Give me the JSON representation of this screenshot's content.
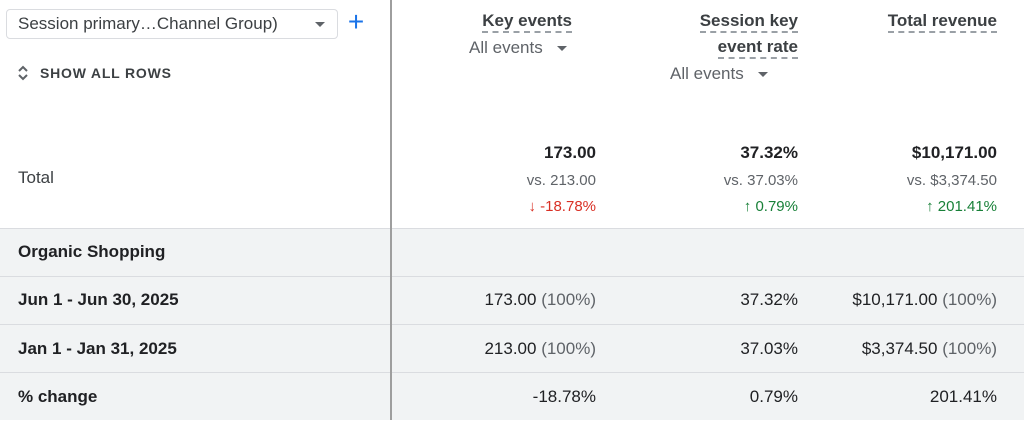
{
  "dimension": {
    "label": "Session primary…Channel Group)",
    "add_label": "+"
  },
  "show_all_rows": {
    "label": "SHOW ALL ROWS"
  },
  "columns": [
    {
      "title_line1": "Key events",
      "title_line2": "",
      "selector": "All events"
    },
    {
      "title_line1": "Session key",
      "title_line2": "event rate",
      "selector": "All events"
    },
    {
      "title_line1": "Total revenue",
      "title_line2": "",
      "selector": ""
    }
  ],
  "total": {
    "label": "Total",
    "values": [
      "173.00",
      "37.32%",
      "$10,171.00"
    ],
    "compare": [
      "vs. 213.00",
      "vs. 37.03%",
      "vs. $3,374.50"
    ],
    "changes": [
      {
        "arrow": "↓",
        "text": "-18.78%",
        "direction": "down"
      },
      {
        "arrow": "↑",
        "text": "0.79%",
        "direction": "up"
      },
      {
        "arrow": "↑",
        "text": "201.41%",
        "direction": "up"
      }
    ]
  },
  "rows": [
    {
      "label": "Organic Shopping",
      "values": []
    },
    {
      "label": "Jun 1 - Jun 30, 2025",
      "values": [
        "173.00",
        "37.32%",
        "$10,171.00"
      ],
      "percents": [
        "(100%)",
        "",
        "(100%)"
      ]
    },
    {
      "label": "Jan 1 - Jan 31, 2025",
      "values": [
        "213.00",
        "37.03%",
        "$3,374.50"
      ],
      "percents": [
        "(100%)",
        "",
        "(100%)"
      ]
    },
    {
      "label": "% change",
      "values": [
        "-18.78%",
        "0.79%",
        "201.41%"
      ],
      "percents": [
        "",
        "",
        ""
      ]
    }
  ],
  "colors": {
    "accent": "#1a73e8",
    "negative": "#d93025",
    "positive": "#188038",
    "band": "#f1f3f4"
  },
  "icons": {
    "add": "plus-icon",
    "expand": "unfold-icon",
    "dropdown": "caret-down-icon"
  }
}
